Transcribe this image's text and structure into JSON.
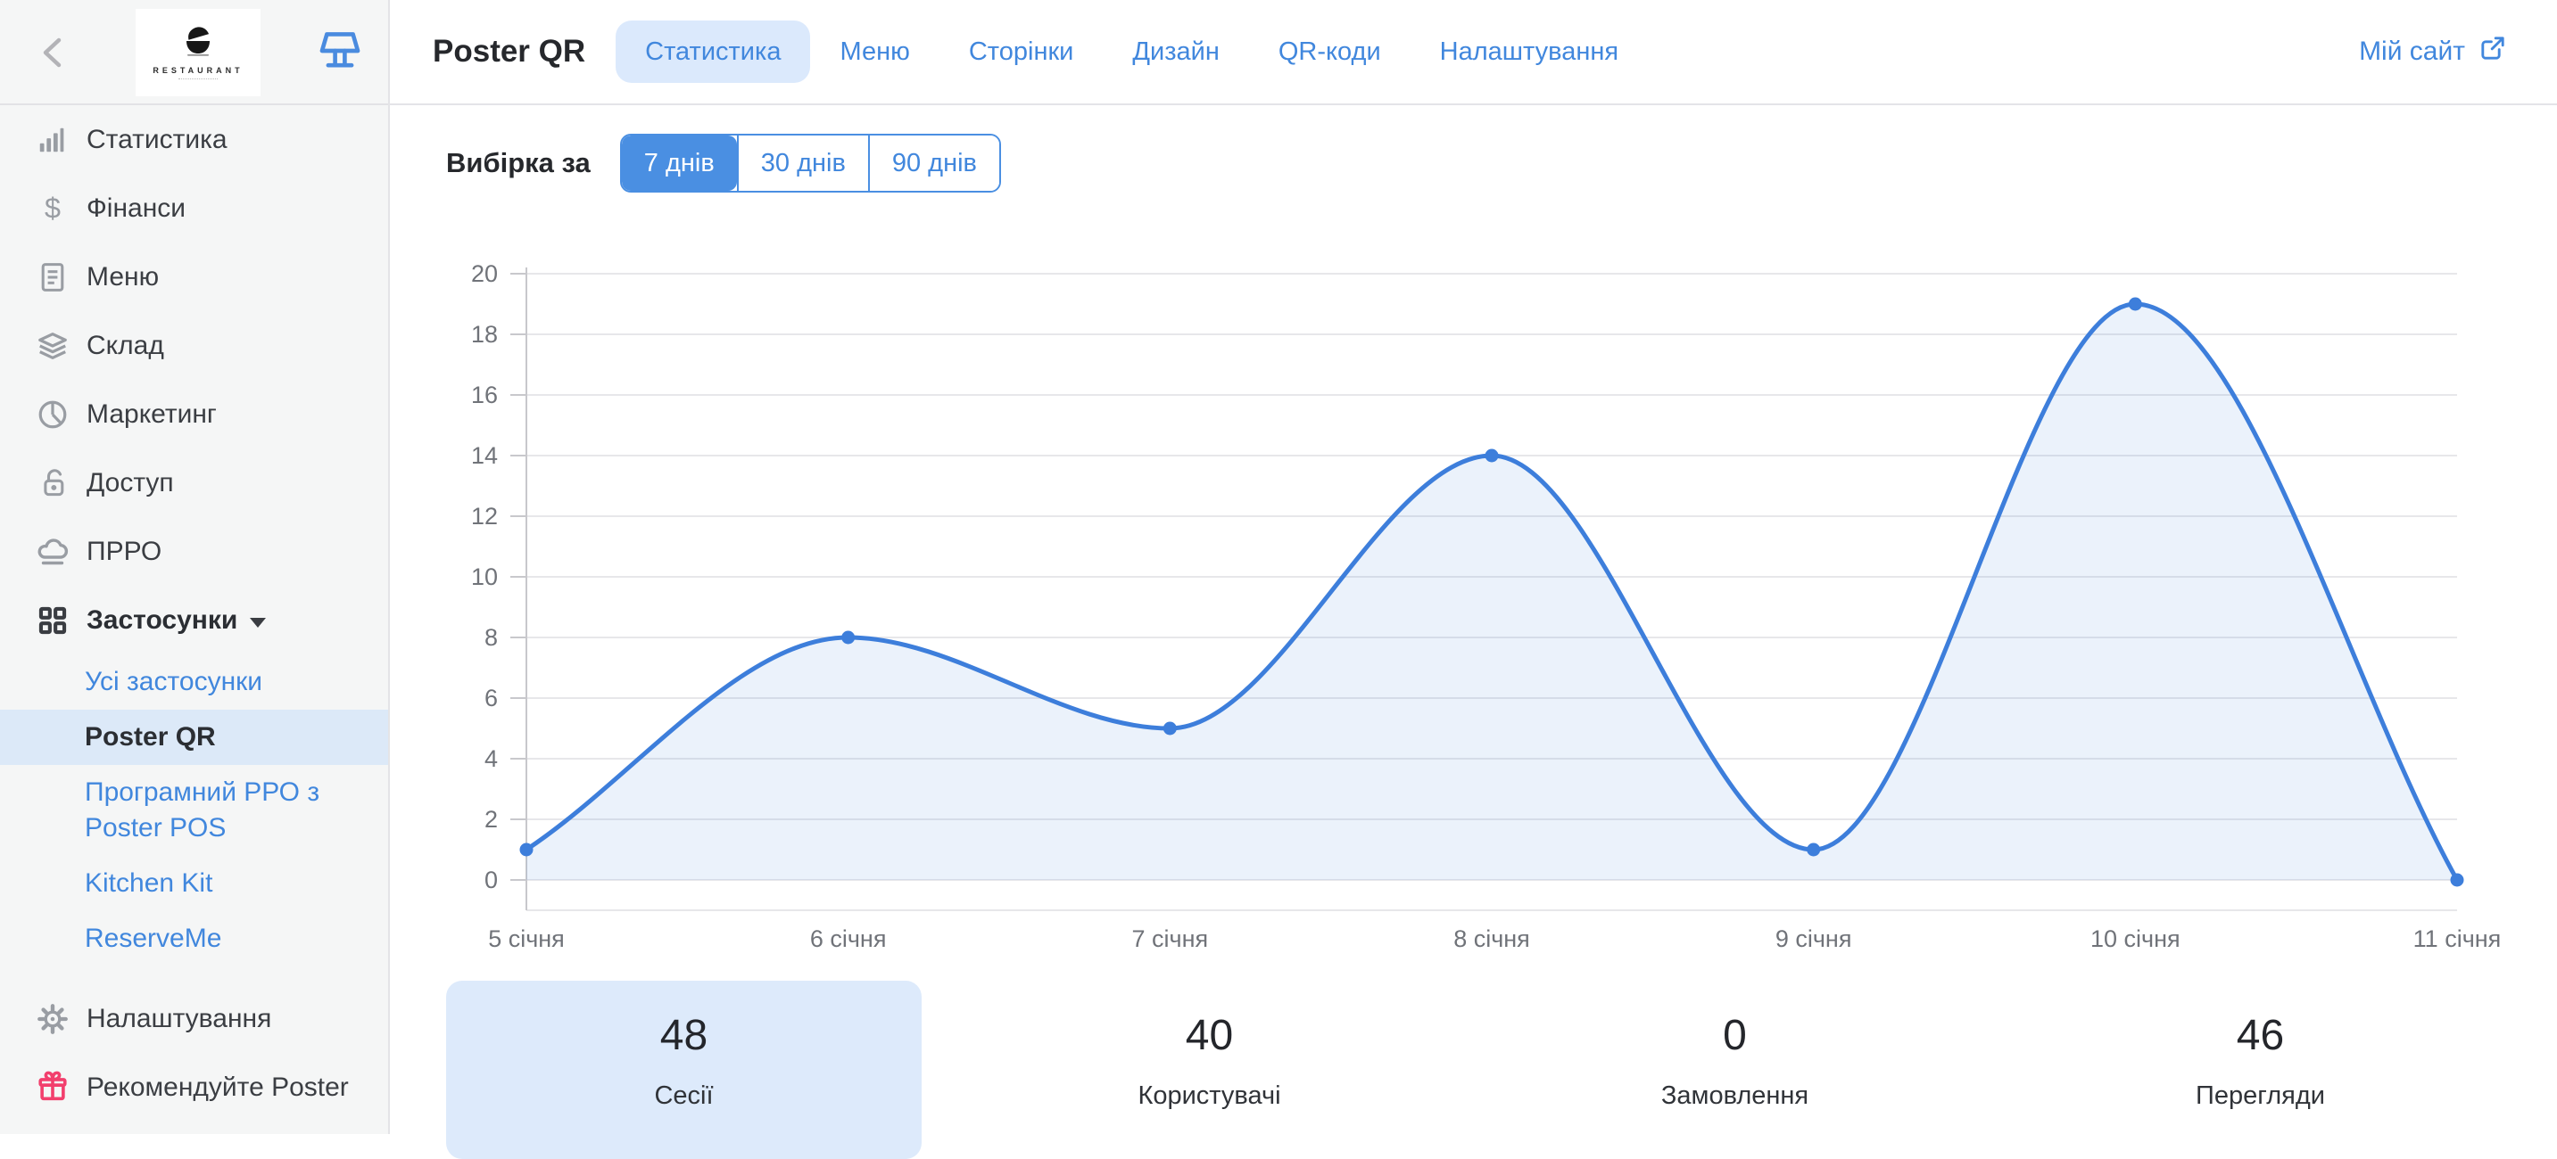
{
  "colors": {
    "accent_blue": "#4a8fe2",
    "link_blue": "#4187dd",
    "active_pill_bg": "#dbe9fc",
    "active_row_bg": "#dce9f8",
    "selected_card_bg": "#ddeafb",
    "sidebar_bg": "#f5f6f6",
    "gift_pink": "#f23f6d",
    "icon_gray": "#999da3",
    "grid_gray": "#e7e7ea",
    "axis_gray": "#c8c8cc",
    "label_gray": "#707379"
  },
  "sidebar": {
    "back_icon": "chevron-left-icon",
    "logo_text": "RESTAURANT",
    "kiosk_icon": "kiosk-icon",
    "main_items": [
      {
        "label": "Статистика",
        "icon": "bar-chart-icon"
      },
      {
        "label": "Фінанси",
        "icon": "dollar-icon"
      },
      {
        "label": "Меню",
        "icon": "document-icon"
      },
      {
        "label": "Склад",
        "icon": "layers-icon"
      },
      {
        "label": "Маркетинг",
        "icon": "pie-chart-icon"
      },
      {
        "label": "Доступ",
        "icon": "lock-open-icon"
      },
      {
        "label": "ПРРО",
        "icon": "cloud-icon"
      },
      {
        "label": "Застосунки",
        "icon": "apps-grid-icon",
        "expanded": true
      }
    ],
    "sub_items": [
      {
        "label": "Усі застосунки",
        "active": false
      },
      {
        "label": "Poster QR",
        "active": true
      },
      {
        "label": "Програмний РРО з Poster POS",
        "active": false
      },
      {
        "label": "Kitchen Kit",
        "active": false
      },
      {
        "label": "ReserveMe",
        "active": false
      }
    ],
    "bottom_items": [
      {
        "label": "Налаштування",
        "icon": "gear-icon"
      },
      {
        "label": "Рекомендуйте Poster",
        "icon": "gift-icon"
      }
    ]
  },
  "header": {
    "title": "Poster QR",
    "tabs": [
      {
        "label": "Статистика",
        "active": true
      },
      {
        "label": "Меню",
        "active": false
      },
      {
        "label": "Сторінки",
        "active": false
      },
      {
        "label": "Дизайн",
        "active": false
      },
      {
        "label": "QR-коди",
        "active": false
      },
      {
        "label": "Налаштування",
        "active": false
      }
    ],
    "site_link": {
      "label": "Мій сайт",
      "icon": "external-link-icon"
    }
  },
  "filter": {
    "label": "Вибірка за",
    "options": [
      {
        "label": "7 днів",
        "active": true
      },
      {
        "label": "30 днів",
        "active": false
      },
      {
        "label": "90 днів",
        "active": false
      }
    ]
  },
  "chart_data": {
    "type": "area",
    "title": "",
    "xlabel": "",
    "ylabel": "",
    "x": [
      "5 січня",
      "6 січня",
      "7 січня",
      "8 січня",
      "9 січня",
      "10 січня",
      "11 січня"
    ],
    "series": [
      {
        "name": "Сесії",
        "values": [
          1,
          8,
          5,
          14,
          1,
          19,
          0
        ]
      }
    ],
    "ylim": [
      0,
      20
    ],
    "ytick_step": 2,
    "grid": true,
    "legend": "none",
    "smooth": true,
    "line_color": "#3d7edb",
    "fill_color": "rgba(61,126,219,0.10)"
  },
  "stats": [
    {
      "value": "48",
      "label": "Сесії",
      "selected": true
    },
    {
      "value": "40",
      "label": "Користувачі",
      "selected": false
    },
    {
      "value": "0",
      "label": "Замовлення",
      "selected": false
    },
    {
      "value": "46",
      "label": "Перегляди",
      "selected": false
    }
  ]
}
